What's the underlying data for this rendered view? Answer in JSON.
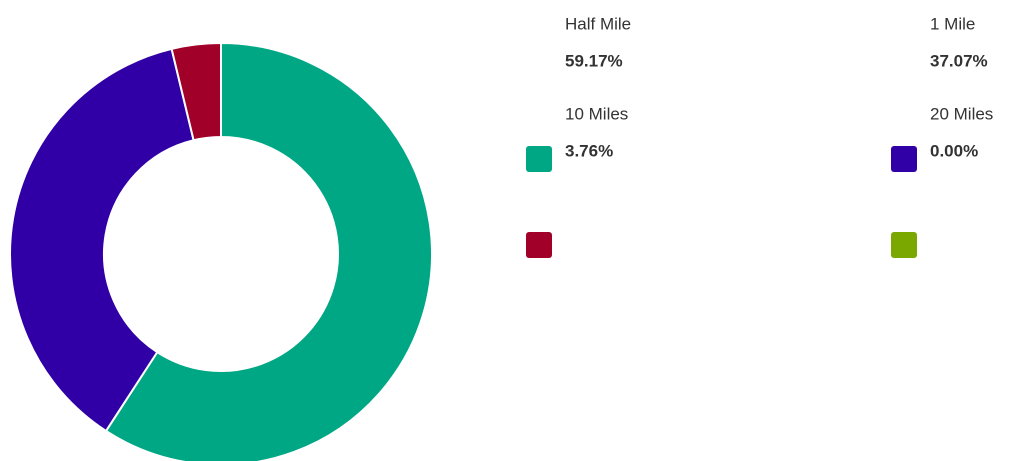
{
  "chart_data": {
    "type": "pie",
    "donut": true,
    "categories": [
      "Half Mile",
      "1 Mile",
      "10 Miles",
      "20 Miles"
    ],
    "values": [
      59.17,
      37.07,
      3.76,
      0.0
    ],
    "value_labels": [
      "59.17%",
      "37.07%",
      "3.76%",
      "0.00%"
    ],
    "colors": [
      "#00a784",
      "#3000a6",
      "#a10029",
      "#7aa800"
    ]
  }
}
